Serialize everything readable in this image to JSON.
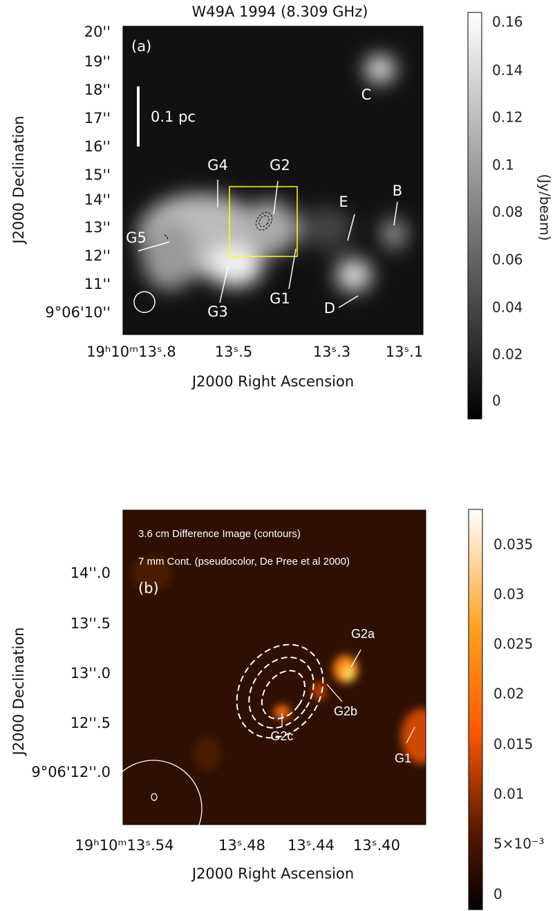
{
  "panel_a": {
    "title": "W49A 1994 (8.309 GHz)",
    "panel_label": "(a)",
    "scale_bar": "0.1 pc",
    "sources": [
      "C",
      "B",
      "E",
      "D",
      "G1",
      "G2",
      "G3",
      "G4",
      "G5"
    ],
    "y_ticks": [
      "20''",
      "19''",
      "18''",
      "17''",
      "16''",
      "15''",
      "14''",
      "13''",
      "12''",
      "11''",
      "9°06'10''"
    ],
    "x_ticks": [
      "19ʰ10ᵐ13ˢ.8",
      "13ˢ.5",
      "13ˢ.3",
      "13ˢ.1"
    ],
    "x_label": "J2000 Right Ascension",
    "y_label": "J2000 Declination",
    "colorbar_ticks": [
      "0.16",
      "0.14",
      "0.12",
      "0.1",
      "0.08",
      "0.06",
      "0.04",
      "0.02",
      "0"
    ],
    "colorbar_label": "(Jy/beam)"
  },
  "panel_b": {
    "notes": [
      "3.6 cm Difference Image (contours)",
      "7 mm Cont. (pseudocolor, De Pree et al 2000)"
    ],
    "panel_label": "(b)",
    "sources": [
      "G2a",
      "G2b",
      "G2c",
      "G1"
    ],
    "y_ticks": [
      "14''.0",
      "13''.5",
      "13''.0",
      "12''.5",
      "9°06'12''.0"
    ],
    "x_ticks": [
      "19ʰ10ᵐ13ˢ.54",
      "13ˢ.48",
      "13ˢ.44",
      "13ˢ.40"
    ],
    "x_label": "J2000 Right Ascension",
    "y_label": "J2000 Declination",
    "colorbar_ticks": [
      "0.035",
      "0.03",
      "0.025",
      "0.02",
      "0.015",
      "0.01",
      "5×10⁻³",
      "0"
    ]
  }
}
